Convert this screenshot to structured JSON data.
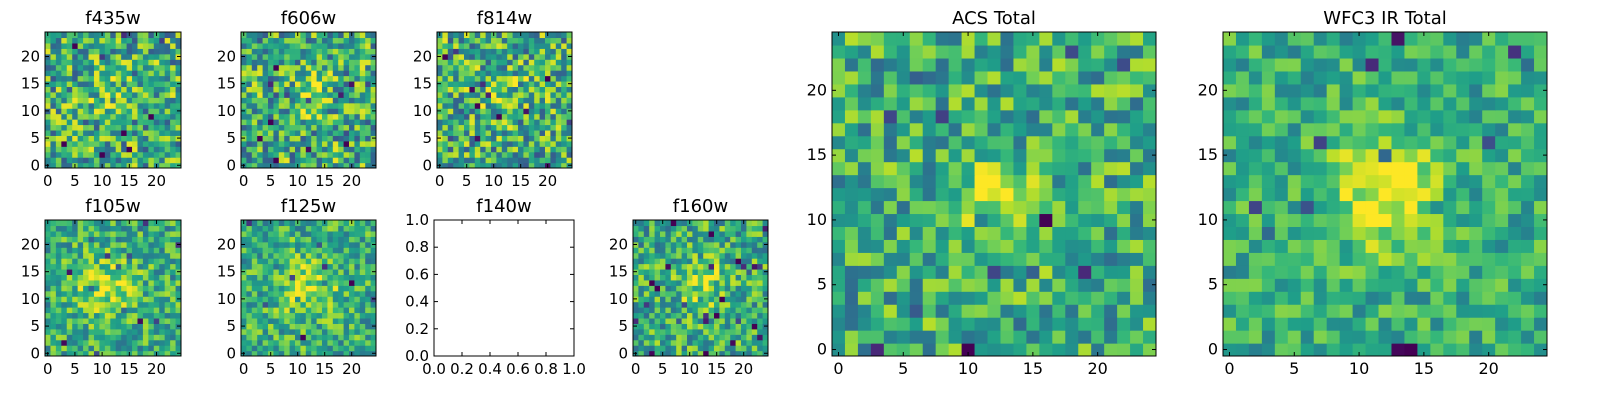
{
  "figure": {
    "background": "#ffffff",
    "colormap": "viridis"
  },
  "chart_data": [
    {
      "type": "heatmap",
      "title": "f435w",
      "xticks": [
        "0",
        "5",
        "10",
        "15",
        "20"
      ],
      "yticks": [
        "0",
        "5",
        "10",
        "15",
        "20"
      ],
      "xlim": [
        -0.5,
        24.5
      ],
      "ylim": [
        -0.5,
        24.5
      ],
      "grid": false,
      "rows": 25,
      "cols": 25,
      "seed": 11,
      "blob": {
        "x": 12,
        "y": 13,
        "sigma": 3,
        "amp": 0.1
      },
      "contrast": 0.7,
      "values_description": ""
    },
    {
      "type": "heatmap",
      "title": "f606w",
      "xticks": [
        "0",
        "5",
        "10",
        "15",
        "20"
      ],
      "yticks": [
        "0",
        "5",
        "10",
        "15",
        "20"
      ],
      "xlim": [
        -0.5,
        24.5
      ],
      "ylim": [
        -0.5,
        24.5
      ],
      "grid": false,
      "rows": 25,
      "cols": 25,
      "seed": 23,
      "blob": {
        "x": 12,
        "y": 13,
        "sigma": 3,
        "amp": 0.15
      },
      "contrast": 0.7
    },
    {
      "type": "heatmap",
      "title": "f814w",
      "xticks": [
        "0",
        "5",
        "10",
        "15",
        "20"
      ],
      "yticks": [
        "0",
        "5",
        "10",
        "15",
        "20"
      ],
      "xlim": [
        -0.5,
        24.5
      ],
      "ylim": [
        -0.5,
        24.5
      ],
      "grid": false,
      "rows": 25,
      "cols": 25,
      "seed": 37,
      "blob": {
        "x": 12,
        "y": 13,
        "sigma": 3,
        "amp": 0.15
      },
      "contrast": 0.7
    },
    {
      "type": "heatmap",
      "title": "f105w",
      "xticks": [
        "0",
        "5",
        "10",
        "15",
        "20"
      ],
      "yticks": [
        "0",
        "5",
        "10",
        "15",
        "20"
      ],
      "xlim": [
        -0.5,
        24.5
      ],
      "ylim": [
        -0.5,
        24.5
      ],
      "grid": false,
      "rows": 25,
      "cols": 25,
      "seed": 41,
      "blob": {
        "x": 11,
        "y": 12,
        "sigma": 4,
        "amp": 0.25
      },
      "contrast": 0.5
    },
    {
      "type": "heatmap",
      "title": "f125w",
      "xticks": [
        "0",
        "5",
        "10",
        "15",
        "20"
      ],
      "yticks": [
        "0",
        "5",
        "10",
        "15",
        "20"
      ],
      "xlim": [
        -0.5,
        24.5
      ],
      "ylim": [
        -0.5,
        24.5
      ],
      "grid": false,
      "rows": 25,
      "cols": 25,
      "seed": 53,
      "blob": {
        "x": 12,
        "y": 12,
        "sigma": 4,
        "amp": 0.25
      },
      "contrast": 0.5
    },
    {
      "type": "line",
      "title": "f140w",
      "xticks": [
        "0.0",
        "0.2",
        "0.4",
        "0.6",
        "0.8",
        "1.0"
      ],
      "yticks": [
        "0.0",
        "0.2",
        "0.4",
        "0.6",
        "0.8",
        "1.0"
      ],
      "xlim": [
        0,
        1
      ],
      "ylim": [
        0,
        1
      ],
      "series": [],
      "grid": false
    },
    {
      "type": "heatmap",
      "title": "f160w",
      "xticks": [
        "0",
        "5",
        "10",
        "15",
        "20"
      ],
      "yticks": [
        "0",
        "5",
        "10",
        "15",
        "20"
      ],
      "xlim": [
        -0.5,
        24.5
      ],
      "ylim": [
        -0.5,
        24.5
      ],
      "grid": false,
      "rows": 25,
      "cols": 25,
      "seed": 67,
      "blob": {
        "x": 12,
        "y": 13,
        "sigma": 3,
        "amp": 0.25
      },
      "contrast": 0.55
    },
    {
      "type": "heatmap",
      "title": "ACS Total",
      "xticks": [
        "0",
        "5",
        "10",
        "15",
        "20"
      ],
      "yticks": [
        "0",
        "5",
        "10",
        "15",
        "20"
      ],
      "xlim": [
        -0.5,
        24.5
      ],
      "ylim": [
        -0.5,
        24.5
      ],
      "grid": false,
      "rows": 25,
      "cols": 25,
      "seed": 79,
      "blob": {
        "x": 12,
        "y": 12,
        "sigma": 2,
        "amp": 0.35
      },
      "contrast": 0.55
    },
    {
      "type": "heatmap",
      "title": "WFC3 IR Total",
      "xticks": [
        "0",
        "5",
        "10",
        "15",
        "20"
      ],
      "yticks": [
        "0",
        "5",
        "10",
        "15",
        "20"
      ],
      "xlim": [
        -0.5,
        24.5
      ],
      "ylim": [
        -0.5,
        24.5
      ],
      "grid": false,
      "rows": 25,
      "cols": 25,
      "seed": 97,
      "blob": {
        "x": 12,
        "y": 12,
        "sigma": 3,
        "amp": 0.4
      },
      "contrast": 0.4
    }
  ]
}
